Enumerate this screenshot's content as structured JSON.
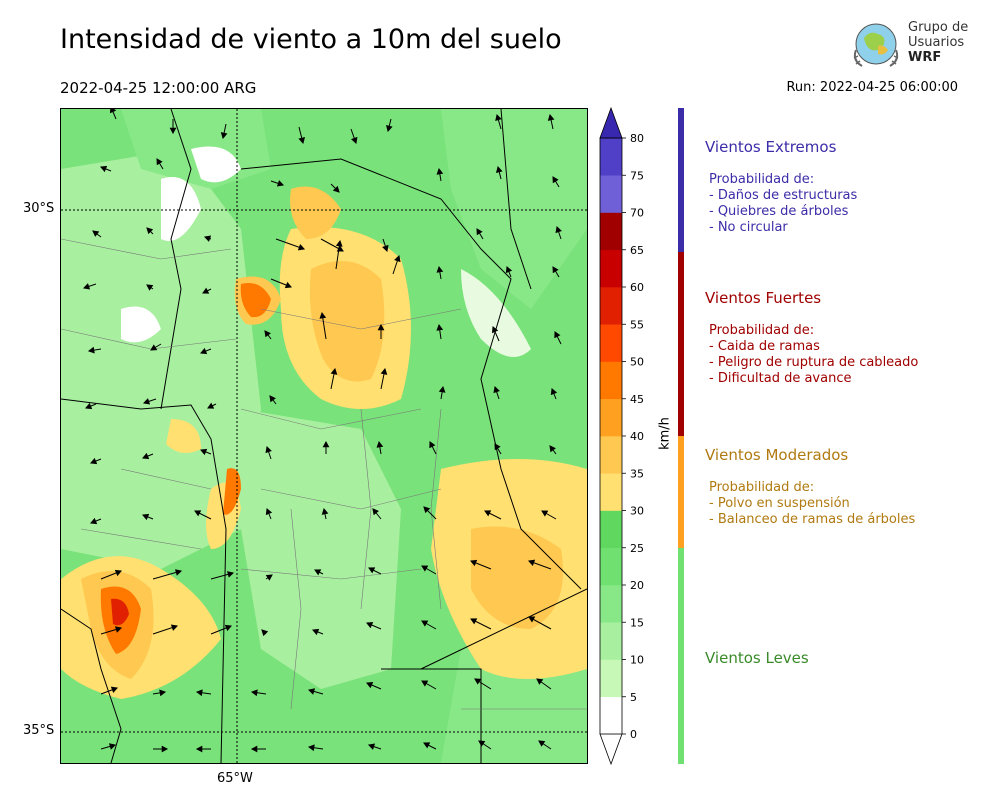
{
  "header": {
    "title": "Intensidad de viento a 10m del suelo",
    "valid_time": "2022-04-25 12:00:00 ARG",
    "run_time": "Run: 2022-04-25 06:00:00"
  },
  "logo": {
    "line1": "Grupo de",
    "line2": "Usuarios",
    "line3": "WRF"
  },
  "map": {
    "lat_labels": [
      "30°S",
      "35°S"
    ],
    "lon_labels": [
      "65°W"
    ]
  },
  "colorbar": {
    "unit": "km/h",
    "ticks": [
      "0",
      "5",
      "10",
      "15",
      "20",
      "25",
      "30",
      "35",
      "40",
      "45",
      "50",
      "55",
      "60",
      "65",
      "70",
      "75",
      "80"
    ],
    "colors": [
      "#ffffff",
      "#c8f8b8",
      "#a8f0a0",
      "#88e888",
      "#70e070",
      "#60d860",
      "#ffe070",
      "#ffc850",
      "#ffa020",
      "#ff7800",
      "#ff4800",
      "#e02000",
      "#c80000",
      "#a00000",
      "#7060d8",
      "#5040c8",
      "#3828b0"
    ]
  },
  "categories": [
    {
      "title": "Vientos Extremos",
      "color": "#3b2ca8",
      "desc_heading": "Probabilidad de:",
      "items": [
        "- Daños de estructuras",
        "- Quiebres de árboles",
        "- No circular"
      ]
    },
    {
      "title": "Vientos Fuertes",
      "color": "#a00000",
      "desc_heading": "Probabilidad de:",
      "items": [
        "- Caida de ramas",
        "- Peligro de ruptura de cableado",
        "- Dificultad de avance"
      ]
    },
    {
      "title": "Vientos Moderados",
      "color": "#b07a10",
      "desc_heading": "Probabilidad de:",
      "items": [
        "- Polvo en suspensión",
        "- Balanceo de ramas de árboles"
      ]
    },
    {
      "title": "Vientos Leves",
      "color": "#3a8a2a",
      "desc_heading": "",
      "items": []
    }
  ],
  "category_bar_colors": [
    "#3b2ca8",
    "#a00000",
    "#ffa020",
    "#70e070"
  ]
}
